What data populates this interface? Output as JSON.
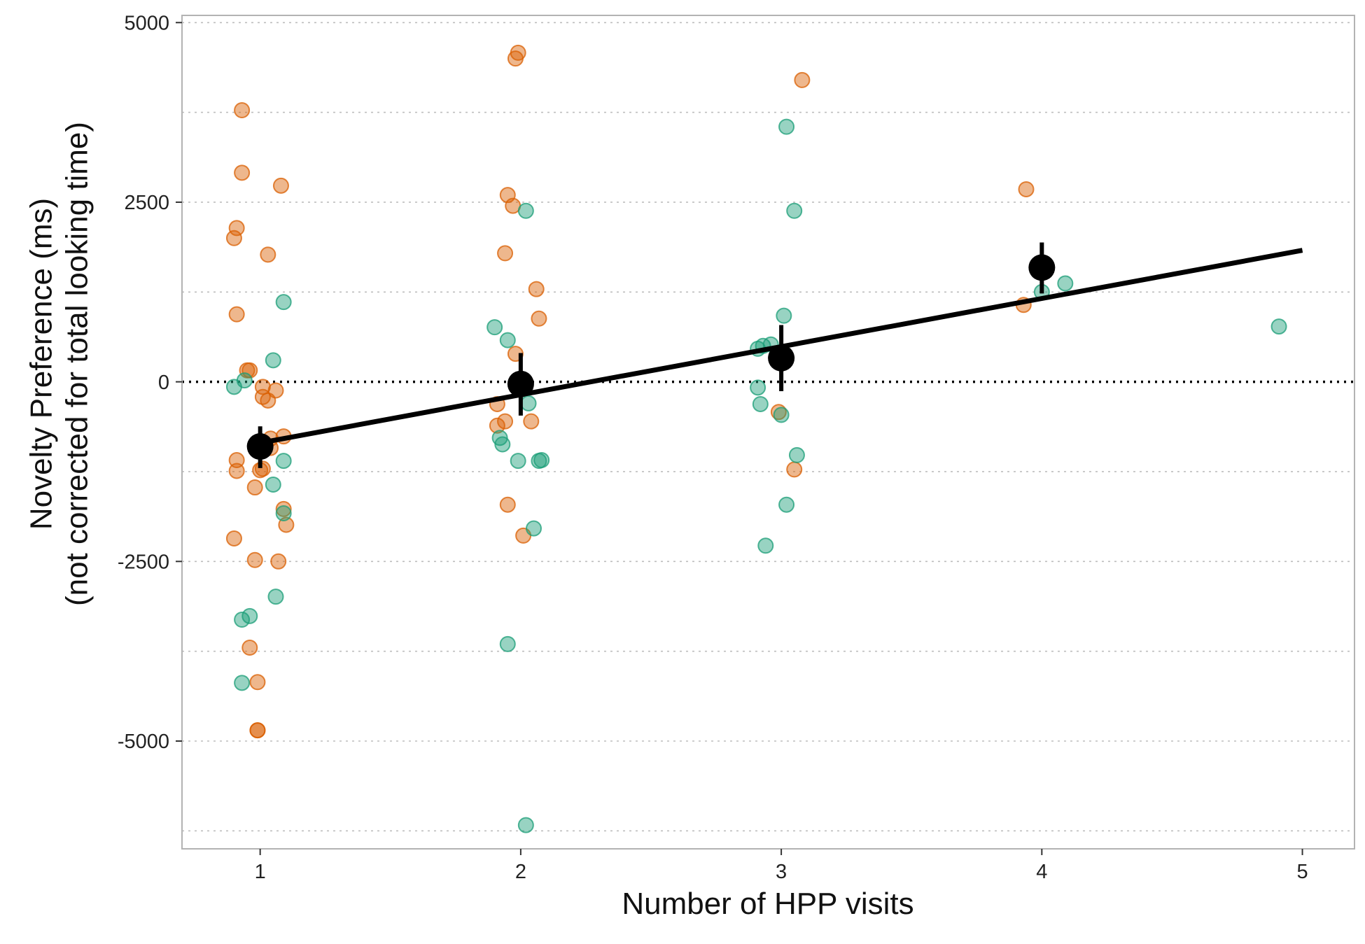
{
  "chart_data": {
    "type": "scatter",
    "title": "",
    "xlabel": "Number of HPP visits",
    "ylabel_line1": "Novelty Preference (ms)",
    "ylabel_line2": "(not corrected for total looking time)",
    "xlim": [
      0.7,
      5.2
    ],
    "ylim": [
      -6500,
      5100
    ],
    "x_ticks": [
      1,
      2,
      3,
      4,
      5
    ],
    "y_ticks": [
      5000,
      2500,
      0,
      -2500,
      -5000
    ],
    "y_tick_labels": [
      "5000",
      "2500",
      "0",
      "-2500",
      "-5000"
    ],
    "grid_y_dotted": [
      5000,
      3750,
      2500,
      1250,
      -1250,
      -2500,
      -3750,
      -5000,
      -6250
    ],
    "reference_line_y": 0,
    "colors": {
      "orange": "#D95F02",
      "green": "#1B9E77",
      "mean": "#000000",
      "panel_border": "#b3b3b3",
      "grid": "#bdbdbd"
    },
    "series": [
      {
        "color_key": "orange",
        "points": [
          [
            0.93,
            3780
          ],
          [
            0.93,
            2910
          ],
          [
            1.08,
            2730
          ],
          [
            0.91,
            2140
          ],
          [
            0.9,
            2000
          ],
          [
            1.03,
            1770
          ],
          [
            0.91,
            940
          ],
          [
            0.95,
            160
          ],
          [
            0.96,
            160
          ],
          [
            1.01,
            -70
          ],
          [
            1.06,
            -120
          ],
          [
            1.01,
            -210
          ],
          [
            1.03,
            -260
          ],
          [
            1.04,
            -790
          ],
          [
            1.09,
            -760
          ],
          [
            1.04,
            -920
          ],
          [
            0.91,
            -1090
          ],
          [
            0.91,
            -1240
          ],
          [
            1.01,
            -1210
          ],
          [
            1.0,
            -1230
          ],
          [
            0.98,
            -1470
          ],
          [
            1.09,
            -1770
          ],
          [
            1.1,
            -1990
          ],
          [
            0.9,
            -2180
          ],
          [
            0.98,
            -2480
          ],
          [
            1.07,
            -2500
          ],
          [
            0.96,
            -3700
          ],
          [
            0.99,
            -4180
          ],
          [
            0.99,
            -4850
          ],
          [
            0.99,
            -4850
          ],
          [
            1.99,
            4580
          ],
          [
            1.98,
            4500
          ],
          [
            1.95,
            2600
          ],
          [
            1.97,
            2450
          ],
          [
            1.94,
            1790
          ],
          [
            2.06,
            1290
          ],
          [
            2.07,
            880
          ],
          [
            1.98,
            390
          ],
          [
            1.91,
            -310
          ],
          [
            1.94,
            -550
          ],
          [
            2.04,
            -550
          ],
          [
            1.91,
            -610
          ],
          [
            1.95,
            -1710
          ],
          [
            2.01,
            -2140
          ],
          [
            3.08,
            4200
          ],
          [
            2.99,
            -420
          ],
          [
            3.05,
            -1220
          ],
          [
            3.94,
            2680
          ],
          [
            3.93,
            1070
          ]
        ]
      },
      {
        "color_key": "green",
        "points": [
          [
            1.09,
            1110
          ],
          [
            1.05,
            300
          ],
          [
            0.94,
            20
          ],
          [
            0.9,
            -70
          ],
          [
            1.09,
            -1100
          ],
          [
            1.05,
            -1430
          ],
          [
            1.09,
            -1830
          ],
          [
            1.06,
            -2990
          ],
          [
            0.93,
            -3310
          ],
          [
            0.96,
            -3260
          ],
          [
            0.93,
            -4190
          ],
          [
            2.02,
            2380
          ],
          [
            1.9,
            760
          ],
          [
            1.95,
            580
          ],
          [
            2.03,
            -300
          ],
          [
            1.92,
            -780
          ],
          [
            1.93,
            -870
          ],
          [
            1.99,
            -1100
          ],
          [
            2.07,
            -1100
          ],
          [
            2.08,
            -1090
          ],
          [
            2.05,
            -2040
          ],
          [
            1.95,
            -3650
          ],
          [
            2.02,
            -6170
          ],
          [
            3.02,
            3550
          ],
          [
            3.05,
            2380
          ],
          [
            3.01,
            920
          ],
          [
            2.91,
            460
          ],
          [
            2.93,
            500
          ],
          [
            2.96,
            520
          ],
          [
            2.91,
            -80
          ],
          [
            2.92,
            -310
          ],
          [
            3.0,
            -460
          ],
          [
            3.06,
            -1020
          ],
          [
            3.02,
            -1710
          ],
          [
            2.94,
            -2280
          ],
          [
            4.0,
            1250
          ],
          [
            4.09,
            1370
          ],
          [
            4.91,
            770
          ]
        ]
      }
    ],
    "means": [
      {
        "x": 1,
        "y": -900,
        "lo": -1200,
        "hi": -620
      },
      {
        "x": 2,
        "y": -30,
        "lo": -470,
        "hi": 400
      },
      {
        "x": 3,
        "y": 330,
        "lo": -130,
        "hi": 790
      },
      {
        "x": 4,
        "y": 1590,
        "lo": 1230,
        "hi": 1940
      }
    ],
    "fit_line": {
      "x0": 1,
      "y0": -850,
      "x1": 5,
      "y1": 1830
    }
  }
}
